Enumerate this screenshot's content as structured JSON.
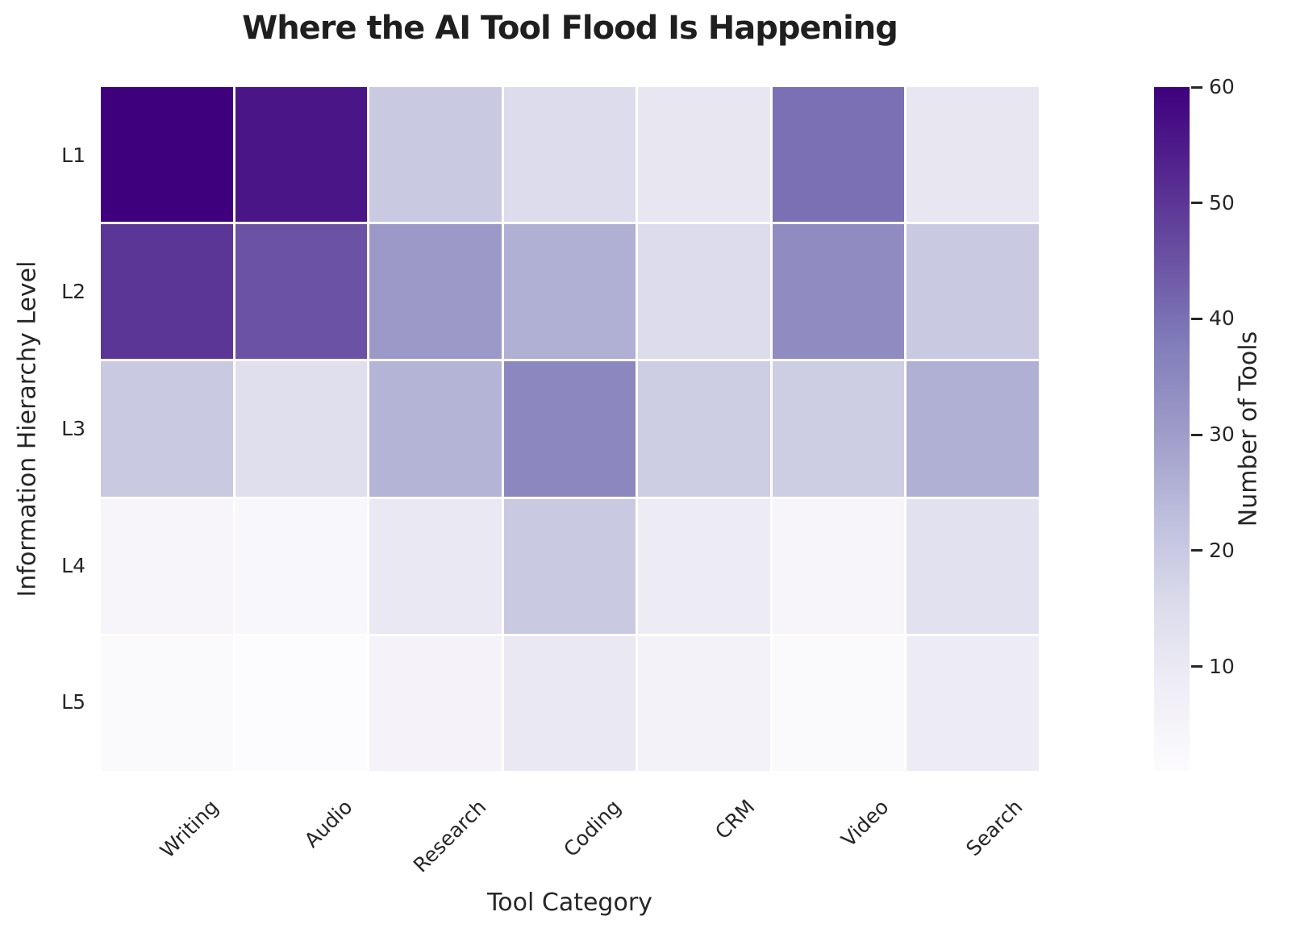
{
  "chart_data": {
    "type": "heatmap",
    "title": "Where the AI Tool Flood Is Happening",
    "xlabel": "Tool Category",
    "ylabel": "Information Hierarchy Level",
    "categories": [
      "Writing",
      "Audio",
      "Research",
      "Coding",
      "CRM",
      "Video",
      "Search"
    ],
    "rows": [
      "L1",
      "L2",
      "L3",
      "L4",
      "L5"
    ],
    "values": [
      [
        60,
        56,
        20,
        15,
        11,
        40,
        11
      ],
      [
        50,
        45,
        31,
        26,
        15,
        34,
        20
      ],
      [
        20,
        14,
        25,
        35,
        19,
        19,
        26
      ],
      [
        4,
        3,
        10,
        20,
        9,
        4,
        13
      ],
      [
        2,
        1,
        5,
        10,
        6,
        2,
        9
      ]
    ],
    "colorbar": {
      "label": "Number of Tools",
      "ticks": [
        10,
        20,
        30,
        40,
        50,
        60
      ],
      "vmin": 1,
      "vmax": 60
    },
    "colormap": {
      "name": "Purples",
      "stops": [
        "#fcfbfd",
        "#efedf5",
        "#dadaeb",
        "#bcbddc",
        "#9e9ac8",
        "#807dba",
        "#6a51a3",
        "#54278f",
        "#3f007d"
      ]
    },
    "grid": false,
    "legend_position": "right-colorbar",
    "cell_gap_color": "#ffffff",
    "text_color": "#262626",
    "background_color": "#ffffff"
  }
}
